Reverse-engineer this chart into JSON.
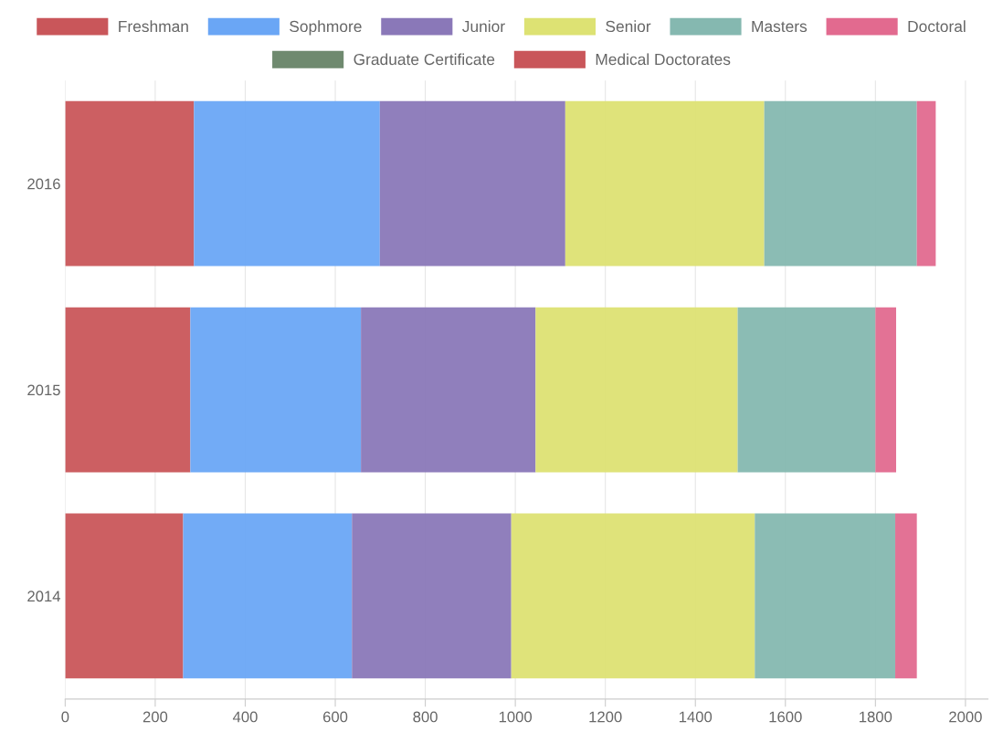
{
  "chart_data": {
    "type": "bar",
    "orientation": "horizontal",
    "stacked": true,
    "categories": [
      "2016",
      "2015",
      "2014"
    ],
    "series": [
      {
        "name": "Freshman",
        "color": "#c9565a",
        "values": [
          286,
          278,
          262
        ]
      },
      {
        "name": "Sophmore",
        "color": "#6aa6f5",
        "values": [
          413,
          379,
          375
        ]
      },
      {
        "name": "Junior",
        "color": "#8a78b8",
        "values": [
          412,
          388,
          354
        ]
      },
      {
        "name": "Senior",
        "color": "#dde273",
        "values": [
          442,
          449,
          541
        ]
      },
      {
        "name": "Masters",
        "color": "#85b8b0",
        "values": [
          339,
          306,
          312
        ]
      },
      {
        "name": "Doctoral",
        "color": "#e26a8f",
        "values": [
          42,
          46,
          48
        ]
      },
      {
        "name": "Graduate Certificate",
        "color": "#6f8a6f",
        "values": [
          0,
          0,
          0
        ]
      },
      {
        "name": "Medical Doctorates",
        "color": "#c9565a",
        "values": [
          0,
          0,
          0
        ]
      }
    ],
    "xlim": [
      0,
      2050
    ],
    "xticks": [
      0,
      200,
      400,
      600,
      800,
      1000,
      1200,
      1400,
      1600,
      1800,
      2000
    ],
    "grid": "x",
    "legend": "top"
  }
}
